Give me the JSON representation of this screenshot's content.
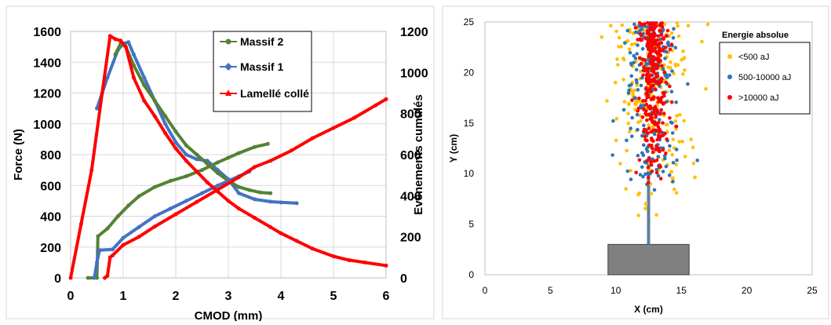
{
  "chart_data": [
    {
      "type": "line",
      "xlabel": "CMOD (mm)",
      "ylabel": "Force (N)",
      "y2label": "Evènements cumulés",
      "xlim": [
        0,
        6
      ],
      "ylim": [
        0,
        1600
      ],
      "y2lim": [
        0,
        1200
      ],
      "x_ticks": [
        "0",
        "1",
        "2",
        "3",
        "4",
        "5",
        "6"
      ],
      "y_ticks": [
        "0",
        "200",
        "400",
        "600",
        "800",
        "1000",
        "1200",
        "1400",
        "1600"
      ],
      "y2_ticks": [
        "0",
        "200",
        "400",
        "600",
        "800",
        "1000",
        "1200"
      ],
      "grid": true,
      "legend_position": "top-center",
      "series": [
        {
          "name": "Massif 2",
          "color": "#548235",
          "force": [
            [
              0.33,
              0
            ],
            [
              0.5,
              0
            ],
            [
              0.52,
              270
            ],
            [
              0.7,
              320
            ],
            [
              0.9,
              400
            ],
            [
              1.1,
              470
            ],
            [
              1.3,
              530
            ],
            [
              1.6,
              590
            ],
            [
              1.9,
              630
            ],
            [
              2.2,
              660
            ],
            [
              2.5,
              700
            ],
            [
              2.8,
              750
            ],
            [
              3.0,
              780
            ],
            [
              3.2,
              810
            ],
            [
              3.5,
              850
            ],
            [
              3.75,
              870
            ]
          ],
          "force_decreasing": [
            [
              0.85,
              1450
            ],
            [
              0.95,
              1520
            ],
            [
              1.05,
              1500
            ],
            [
              1.2,
              1380
            ],
            [
              1.4,
              1250
            ],
            [
              1.6,
              1150
            ],
            [
              1.8,
              1050
            ],
            [
              2.0,
              950
            ],
            [
              2.2,
              860
            ],
            [
              2.4,
              800
            ],
            [
              2.6,
              740
            ],
            [
              2.8,
              680
            ],
            [
              3.0,
              630
            ],
            [
              3.2,
              590
            ],
            [
              3.4,
              570
            ],
            [
              3.6,
              555
            ],
            [
              3.8,
              550
            ]
          ]
        },
        {
          "name": "Massif 1",
          "color": "#4472c4",
          "force": [
            [
              0.45,
              0
            ],
            [
              0.5,
              100
            ],
            [
              0.55,
              180
            ],
            [
              0.8,
              185
            ],
            [
              1.0,
              260
            ],
            [
              1.3,
              330
            ],
            [
              1.6,
              400
            ],
            [
              1.9,
              450
            ],
            [
              2.2,
              500
            ],
            [
              2.5,
              550
            ],
            [
              2.8,
              600
            ],
            [
              3.0,
              630
            ],
            [
              3.2,
              660
            ],
            [
              3.4,
              690
            ]
          ],
          "force_decreasing": [
            [
              0.5,
              1100
            ],
            [
              0.7,
              1300
            ],
            [
              0.9,
              1480
            ],
            [
              1.0,
              1520
            ],
            [
              1.1,
              1530
            ],
            [
              1.2,
              1450
            ],
            [
              1.4,
              1300
            ],
            [
              1.6,
              1150
            ],
            [
              1.8,
              1000
            ],
            [
              2.0,
              880
            ],
            [
              2.2,
              800
            ],
            [
              2.4,
              770
            ],
            [
              2.6,
              760
            ],
            [
              2.8,
              700
            ],
            [
              3.0,
              640
            ],
            [
              3.2,
              550
            ],
            [
              3.5,
              510
            ],
            [
              3.8,
              495
            ],
            [
              4.0,
              490
            ],
            [
              4.3,
              485
            ]
          ]
        },
        {
          "name": "Lamellé collé",
          "color": "#ff0000",
          "force": [
            [
              0.0,
              0
            ],
            [
              0.2,
              350
            ],
            [
              0.4,
              700
            ],
            [
              0.6,
              1200
            ],
            [
              0.75,
              1570
            ],
            [
              0.85,
              1550
            ],
            [
              0.95,
              1540
            ],
            [
              1.05,
              1500
            ],
            [
              1.2,
              1300
            ],
            [
              1.4,
              1150
            ],
            [
              1.6,
              1050
            ],
            [
              1.8,
              940
            ],
            [
              2.0,
              840
            ],
            [
              2.2,
              760
            ],
            [
              2.4,
              690
            ],
            [
              2.6,
              620
            ],
            [
              2.8,
              560
            ],
            [
              3.0,
              500
            ],
            [
              3.2,
              450
            ],
            [
              3.5,
              390
            ],
            [
              3.8,
              330
            ],
            [
              4.0,
              290
            ],
            [
              4.3,
              240
            ],
            [
              4.6,
              190
            ],
            [
              5.0,
              140
            ],
            [
              5.3,
              115
            ],
            [
              5.6,
              100
            ],
            [
              6.0,
              80
            ]
          ],
          "events": [
            [
              0.65,
              0
            ],
            [
              0.7,
              10
            ],
            [
              0.75,
              100
            ],
            [
              0.8,
              110
            ],
            [
              1.0,
              160
            ],
            [
              1.3,
              200
            ],
            [
              1.6,
              250
            ],
            [
              2.0,
              310
            ],
            [
              2.4,
              370
            ],
            [
              2.8,
              430
            ],
            [
              3.2,
              490
            ],
            [
              3.5,
              540
            ],
            [
              3.8,
              570
            ],
            [
              4.2,
              620
            ],
            [
              4.6,
              680
            ],
            [
              5.0,
              730
            ],
            [
              5.4,
              780
            ],
            [
              5.8,
              840
            ],
            [
              6.0,
              870
            ]
          ]
        }
      ]
    },
    {
      "type": "scatter",
      "xlabel": "X (cm)",
      "ylabel": "Y (cm)",
      "xlim": [
        0,
        25
      ],
      "ylim": [
        0,
        25
      ],
      "x_ticks": [
        "0",
        "5",
        "10",
        "15",
        "20",
        "25"
      ],
      "y_ticks": [
        "0",
        "5",
        "10",
        "15",
        "20",
        "25"
      ],
      "legend_title": "Energie absolue",
      "legend_position": "top-right",
      "series": [
        {
          "name": "<500 aJ",
          "color": "#ffc000"
        },
        {
          "name": "500-10000 aJ",
          "color": "#2e75b6"
        },
        {
          "name": ">10000 aJ",
          "color": "#ff0000"
        }
      ],
      "specimen_block": {
        "x_range": [
          9.4,
          15.6
        ],
        "y_range": [
          0,
          3.0
        ],
        "color": "#808080"
      },
      "notch": {
        "x": 12.5,
        "y_range": [
          3.0,
          11.5
        ],
        "color": "#5b7fa3"
      }
    }
  ]
}
